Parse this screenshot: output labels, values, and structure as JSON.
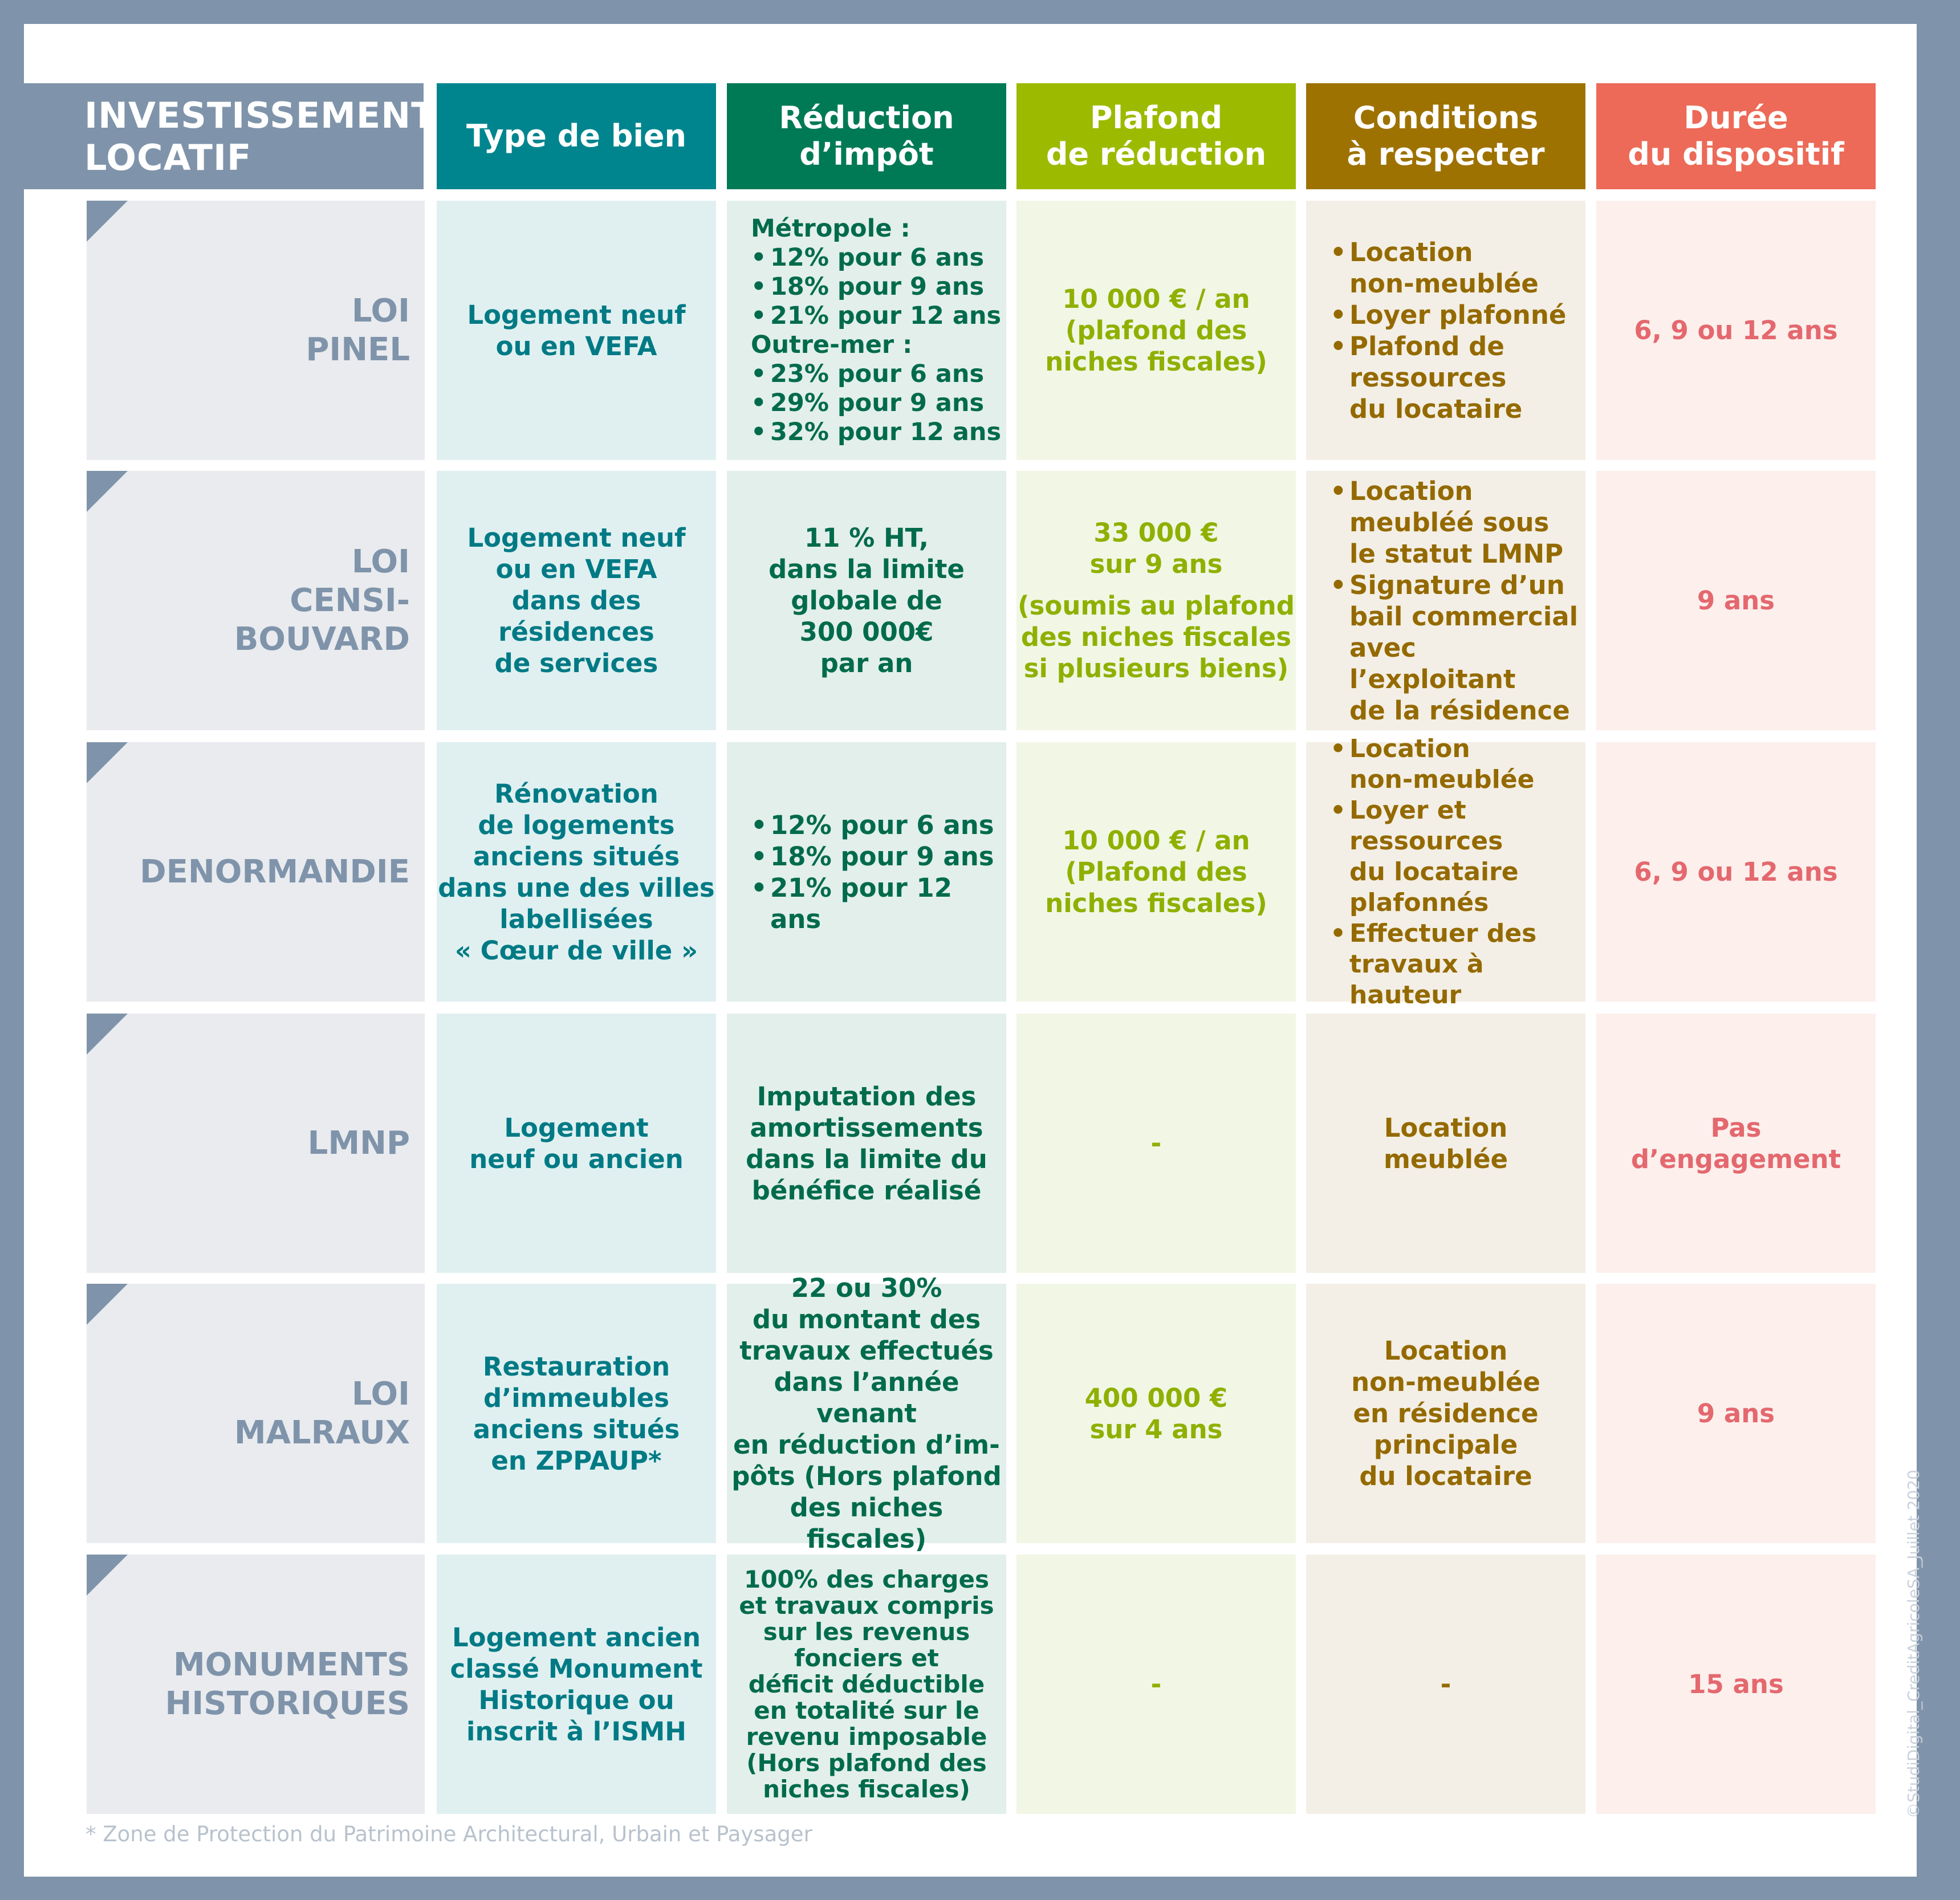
{
  "title": "INVESTISSEMENT\nLOCATIF",
  "colors": {
    "frame": "#7f94aa",
    "type_header": "#00858f",
    "type_bg": "#e0f0f0",
    "type_text": "#007a85",
    "reduction_header": "#007a55",
    "reduction_bg": "#e3efea",
    "reduction_text": "#006b4c",
    "plafond_header": "#9cbb00",
    "plafond_bg": "#f2f6e5",
    "plafond_text": "#8fb000",
    "conditions_header": "#9e7200",
    "conditions_bg": "#f3efe6",
    "conditions_text": "#946a00",
    "duree_header": "#ec6a57",
    "duree_bg": "#fcefec",
    "duree_text": "#e4686e"
  },
  "headers": {
    "type": "Type de bien",
    "reduction": "Réduction\nd’impôt",
    "plafond": "Plafond\nde réduction",
    "conditions": "Conditions\nà respecter",
    "duree": "Durée\ndu dispositif"
  },
  "rows": [
    {
      "label": "LOI\nPINEL",
      "type": "Logement neuf\nou en VEFA",
      "reduction_lines": [
        {
          "text": "Métropole :",
          "bullet": false
        },
        {
          "text": "12% pour 6 ans",
          "bullet": true
        },
        {
          "text": "18% pour 9 ans",
          "bullet": true
        },
        {
          "text": "21% pour 12 ans",
          "bullet": true
        },
        {
          "text": "Outre-mer :",
          "bullet": false
        },
        {
          "text": "23% pour 6 ans",
          "bullet": true
        },
        {
          "text": "29% pour 9 ans",
          "bullet": true
        },
        {
          "text": "32% pour 12 ans",
          "bullet": true
        }
      ],
      "plafond": "10 000 € / an\n(plafond des\nniches fiscales)",
      "conditions_lines": [
        "Location\nnon-meublée",
        "Loyer plafonné",
        "Plafond de\nressources\ndu locataire"
      ],
      "duree": "6, 9 ou 12 ans"
    },
    {
      "label": "LOI\nCENSI-\nBOUVARD",
      "type": "Logement neuf\nou en VEFA\ndans des résidences\nde services",
      "reduction": "11 % HT,\ndans la limite\nglobale de\n300 000€\npar an",
      "plafond": "33 000 €\nsur 9 ans",
      "plafond_note": "(soumis au plafond\ndes niches fiscales\nsi plusieurs biens)",
      "conditions_lines": [
        "Location\nmeubléé sous\nle statut LMNP",
        "Signature d’un\nbail commercial\navec l’exploitant\nde la résidence"
      ],
      "duree": "9 ans"
    },
    {
      "label": "DENORMANDIE",
      "type": "Rénovation\nde logements\nanciens situés\ndans une des villes\nlabellisées\n« Cœur de ville »",
      "reduction_lines": [
        {
          "text": "12% pour 6 ans",
          "bullet": true
        },
        {
          "text": "18% pour 9 ans",
          "bullet": true
        },
        {
          "text": "21% pour 12 ans",
          "bullet": true
        }
      ],
      "plafond": "10 000 € / an\n(Plafond des\nniches fiscales)",
      "conditions_lines": [
        "Location\nnon-meublée",
        "Loyer et\nressources\ndu locataire\nplafonnés",
        "Effectuer des\ntravaux à hauteur"
      ],
      "duree": "6, 9 ou 12 ans"
    },
    {
      "label": "LMNP",
      "type": "Logement\nneuf ou ancien",
      "reduction": "Imputation des\namortissements\ndans la limite du\nbénéfice réalisé",
      "plafond": "-",
      "conditions": "Location\nmeublée",
      "duree": "Pas\nd’engagement"
    },
    {
      "label": "LOI\nMALRAUX",
      "type": "Restauration\nd’immeubles\nanciens situés\nen ZPPAUP*",
      "reduction": "22 ou 30%\ndu montant des\ntravaux effectués\ndans l’année venant\nen réduction d’im-\npôts (Hors plafond\ndes niches fiscales)",
      "plafond": "400 000 €\nsur 4 ans",
      "conditions": "Location\nnon-meublée\nen résidence\nprincipale\ndu locataire",
      "duree": "9 ans"
    },
    {
      "label": "MONUMENTS\nHISTORIQUES",
      "type": "Logement ancien\nclassé Monument\nHistorique ou\ninscrit à l’ISMH",
      "reduction": "100% des charges\net travaux compris\nsur les revenus\nfonciers et\ndéficit déductible\nen totalité sur le\nrevenu imposable\n(Hors plafond des\nniches fiscales)",
      "plafond": "-",
      "conditions": "-",
      "duree": "15 ans"
    }
  ],
  "footnote": "* Zone de Protection du Patrimoine Architectural, Urbain et Paysager",
  "copyright": "©StudiDigital_CreditAgricoleSA_Juillet 2020"
}
